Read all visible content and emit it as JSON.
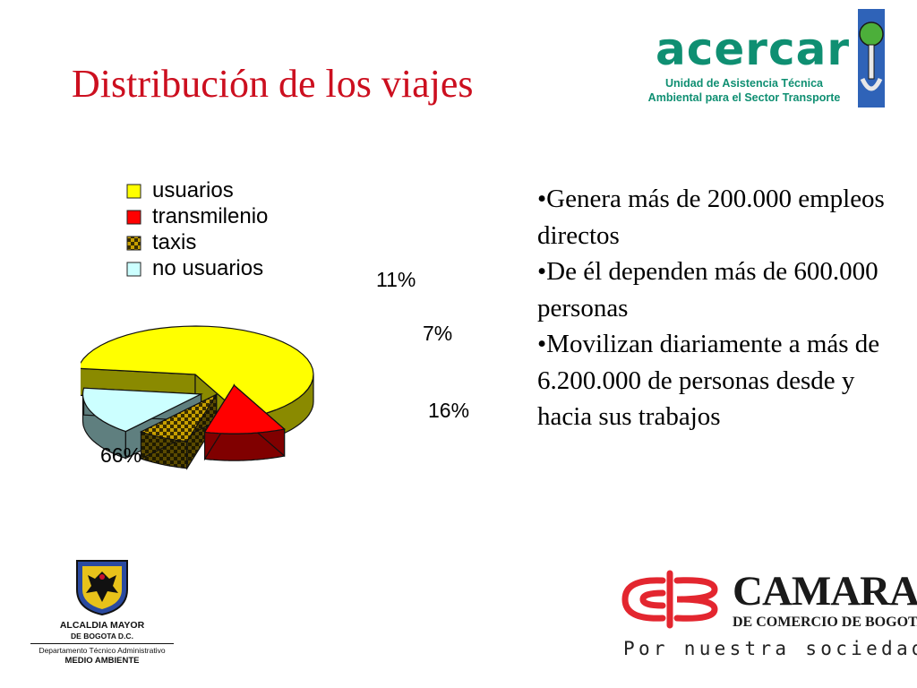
{
  "slide": {
    "title": "Distribución de los viajes",
    "bullets": [
      "•Genera más de 200.000 empleos directos",
      "•De él dependen más de 600.000 personas",
      "•Movilizan diariamente a más de 6.200.000 de personas desde y hacia sus trabajos"
    ]
  },
  "logos": {
    "acercar": {
      "name": "acercar",
      "line1": "Unidad de Asistencia Técnica",
      "line2": "Ambiental para el Sector Transporte",
      "color": "#0f8f72"
    },
    "alcaldia": {
      "line1": "ALCALDIA MAYOR",
      "line2": "DE BOGOTA D.C.",
      "line3": "Departamento Técnico Administrativo",
      "line4": "MEDIO AMBIENTE"
    },
    "camara": {
      "name": "CAMARA",
      "subtitle": "DE COMERCIO DE BOGOTA",
      "slogan": "Por nuestra sociedad",
      "color": "#e3262f"
    }
  },
  "chart_data": {
    "type": "pie",
    "exploded": true,
    "three_d": true,
    "legend_position": "top-left",
    "categories": [
      "usuarios",
      "transmilenio",
      "taxis",
      "no usuarios"
    ],
    "values": [
      66,
      11,
      7,
      16
    ],
    "labels": [
      "66%",
      "11%",
      "7%",
      "16%"
    ],
    "colors": [
      "#ffff00",
      "#ff0000",
      "#c8a000",
      "#ccffff"
    ],
    "side_colors": [
      "#8a8a00",
      "#800000",
      "#5a4a00",
      "#5f7f7f"
    ],
    "patterns": [
      "solid",
      "solid",
      "checker",
      "solid"
    ]
  }
}
